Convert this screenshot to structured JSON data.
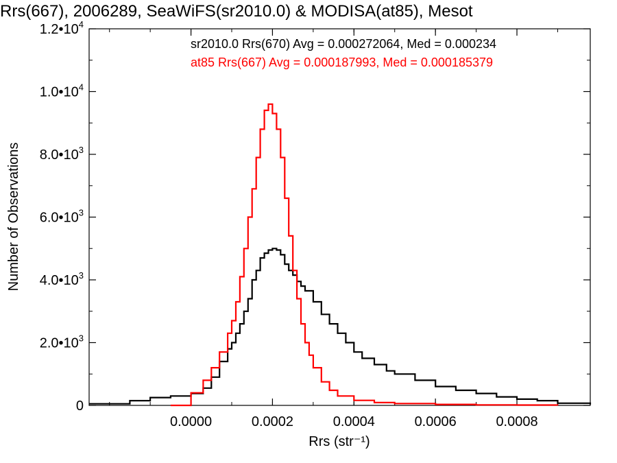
{
  "chart_data": {
    "type": "line",
    "title": "Rrs(667), 2006289, SeaWiFS(sr2010.0) & MODISA(at85), Mesot",
    "xlabel": "Rrs (str⁻¹)",
    "ylabel": "Number of Observations",
    "xlim": [
      -0.00025,
      0.00098
    ],
    "ylim": [
      0,
      12000
    ],
    "x_ticks": [
      {
        "value": 0.0,
        "label": "0.0000"
      },
      {
        "value": 0.0002,
        "label": "0.0002"
      },
      {
        "value": 0.0004,
        "label": "0.0004"
      },
      {
        "value": 0.0006,
        "label": "0.0006"
      },
      {
        "value": 0.0008,
        "label": "0.0008"
      }
    ],
    "y_ticks": [
      {
        "value": 0,
        "mantissa": "0",
        "exponent": ""
      },
      {
        "value": 2000,
        "mantissa": "2.0•10",
        "exponent": "3"
      },
      {
        "value": 4000,
        "mantissa": "4.0•10",
        "exponent": "3"
      },
      {
        "value": 6000,
        "mantissa": "6.0•10",
        "exponent": "3"
      },
      {
        "value": 8000,
        "mantissa": "8.0•10",
        "exponent": "3"
      },
      {
        "value": 10000,
        "mantissa": "1.0•10",
        "exponent": "4"
      },
      {
        "value": 12000,
        "mantissa": "1.2•10",
        "exponent": "4"
      }
    ],
    "grid": false,
    "legend_position": "top-right",
    "series": [
      {
        "name": "sr2010.0 Rrs(670) Avg = 0.000272064, Med = 0.000234",
        "color": "#000000",
        "style": "histogram-step",
        "x": [
          -0.00025,
          -0.00015,
          -0.0001,
          -5e-05,
          0.0,
          3e-05,
          5e-05,
          7e-05,
          9e-05,
          0.0001,
          0.00011,
          0.00012,
          0.00013,
          0.00014,
          0.00015,
          0.00016,
          0.00017,
          0.00018,
          0.00019,
          0.0002,
          0.00021,
          0.00022,
          0.00023,
          0.00024,
          0.00025,
          0.00026,
          0.00027,
          0.00028,
          0.0003,
          0.00032,
          0.00034,
          0.00036,
          0.00038,
          0.0004,
          0.00042,
          0.00045,
          0.00048,
          0.0005,
          0.00055,
          0.0006,
          0.00065,
          0.0007,
          0.00075,
          0.0008,
          0.00085,
          0.0009,
          0.00098
        ],
        "y": [
          50,
          150,
          250,
          300,
          380,
          550,
          900,
          1400,
          1800,
          2000,
          2300,
          2600,
          3000,
          3400,
          4000,
          4300,
          4700,
          4850,
          4950,
          5000,
          4950,
          4800,
          4500,
          4300,
          4150,
          3950,
          3800,
          3650,
          3300,
          2900,
          2600,
          2300,
          2000,
          1700,
          1500,
          1300,
          1100,
          1000,
          800,
          600,
          480,
          380,
          270,
          200,
          150,
          70,
          30
        ]
      },
      {
        "name": "at85 Rrs(667) Avg = 0.000187993, Med = 0.000185379",
        "color": "#ff0000",
        "style": "histogram-step",
        "x": [
          -5e-05,
          0.0,
          3e-05,
          5e-05,
          7e-05,
          9e-05,
          0.0001,
          0.00011,
          0.00012,
          0.00013,
          0.00014,
          0.00015,
          0.00016,
          0.00017,
          0.00018,
          0.00019,
          0.0002,
          0.00021,
          0.00022,
          0.00023,
          0.00024,
          0.00025,
          0.00026,
          0.00027,
          0.00028,
          0.00029,
          0.0003,
          0.00032,
          0.00034,
          0.00036,
          0.0004,
          0.00045,
          0.0005,
          0.0006,
          0.0007,
          0.0008,
          0.0009
        ],
        "y": [
          0,
          400,
          800,
          1200,
          1700,
          2300,
          2700,
          3300,
          4100,
          5000,
          6000,
          6900,
          7900,
          8800,
          9400,
          9600,
          9300,
          8800,
          7900,
          6600,
          5400,
          4300,
          3400,
          2600,
          2000,
          1600,
          1200,
          750,
          480,
          300,
          160,
          90,
          60,
          30,
          15,
          10,
          5
        ]
      }
    ]
  }
}
